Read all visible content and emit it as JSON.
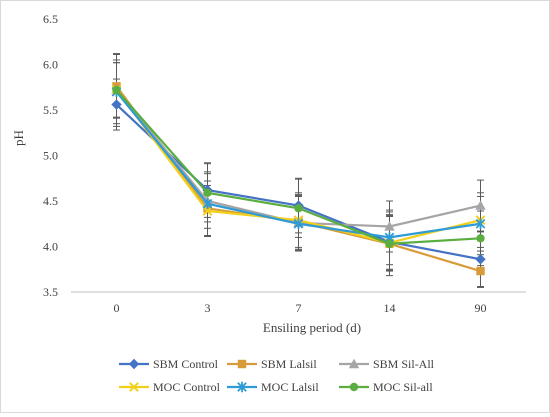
{
  "chart_data": {
    "type": "line",
    "title": "",
    "xlabel": "Ensiling period (d)",
    "ylabel": "pH",
    "categories": [
      "0",
      "3",
      "7",
      "14",
      "90"
    ],
    "ylim": [
      3.5,
      6.5
    ],
    "yticks": [
      "3.5",
      "4.0",
      "4.5",
      "5.0",
      "5.5",
      "6.0",
      "6.5"
    ],
    "grid": false,
    "legend_position": "bottom",
    "series": [
      {
        "name": "SBM Control",
        "values": [
          5.56,
          4.62,
          4.45,
          4.05,
          3.86
        ],
        "errors": [
          0.28,
          0.3,
          0.3,
          0.3,
          0.3
        ],
        "color": "#4472c4",
        "marker": "diamond"
      },
      {
        "name": "SBM Lalsil",
        "values": [
          5.76,
          4.42,
          4.27,
          4.03,
          3.73
        ],
        "errors": [
          0.35,
          0.3,
          0.3,
          0.3,
          0.18
        ],
        "color": "#d89b3a",
        "marker": "square"
      },
      {
        "name": "SBM Sil-All",
        "values": [
          5.72,
          4.5,
          4.26,
          4.22,
          4.45
        ],
        "errors": [
          0.4,
          0.3,
          0.3,
          0.28,
          0.28
        ],
        "color": "#a5a5a5",
        "marker": "triangle"
      },
      {
        "name": "MOC Control",
        "values": [
          5.72,
          4.39,
          4.29,
          4.04,
          4.29
        ],
        "errors": [
          0.3,
          0.28,
          0.3,
          0.3,
          0.3
        ],
        "color": "#f2d01a",
        "marker": "x"
      },
      {
        "name": "MOC Lalsil",
        "values": [
          5.7,
          4.47,
          4.25,
          4.1,
          4.25
        ],
        "errors": [
          0.35,
          0.35,
          0.3,
          0.3,
          0.3
        ],
        "color": "#2e9bd6",
        "marker": "star"
      },
      {
        "name": "MOC Sil-all",
        "values": [
          5.72,
          4.59,
          4.42,
          4.03,
          4.09
        ],
        "errors": [
          0.3,
          0.32,
          0.32,
          0.35,
          0.3
        ],
        "color": "#5aad3f",
        "marker": "circle"
      }
    ]
  }
}
